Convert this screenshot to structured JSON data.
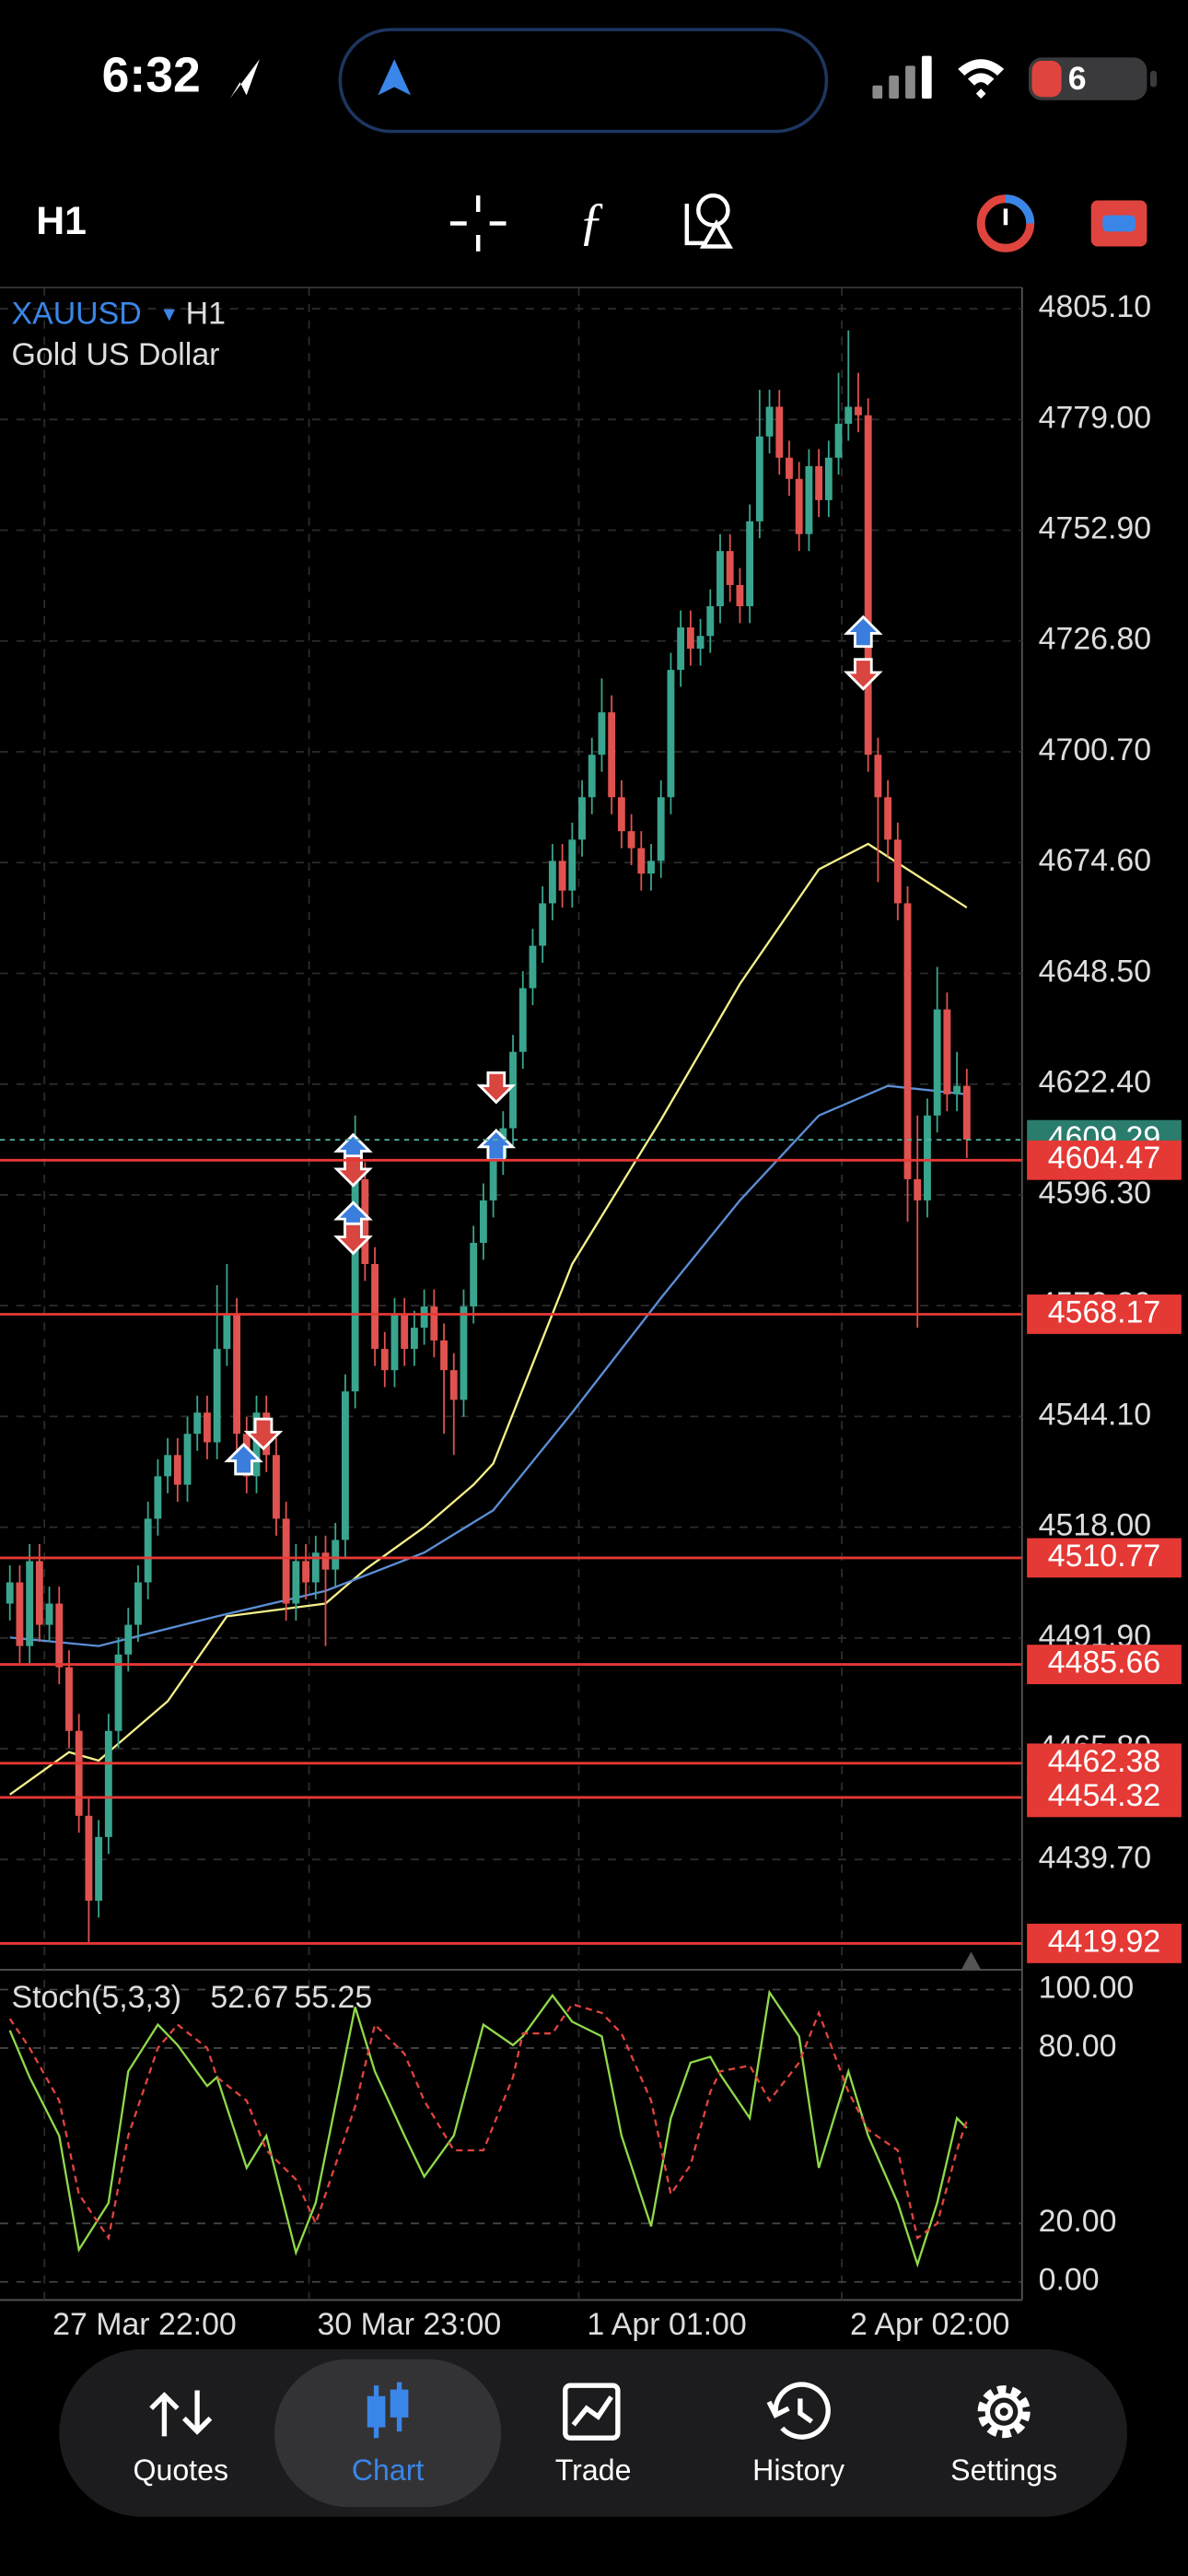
{
  "status_bar": {
    "time": "6:32",
    "battery": "6"
  },
  "toolbar": {
    "timeframe": "H1"
  },
  "chart": {
    "type": "candlestick",
    "symbol": "XAUUSD",
    "symbol_timeframe": "H1",
    "description": "Gold US Dollar",
    "up_color": "#3aa58f",
    "down_color": "#e0524f",
    "ylim": [
      4414.1,
      4810.1
    ],
    "xlim": [
      -1,
      102.6
    ],
    "yticks": [
      {
        "value": 4805.1,
        "label": "4805.10"
      },
      {
        "value": 4779,
        "label": "4779.00"
      },
      {
        "value": 4752.9,
        "label": "4752.90"
      },
      {
        "value": 4726.8,
        "label": "4726.80"
      },
      {
        "value": 4700.7,
        "label": "4700.70"
      },
      {
        "value": 4674.6,
        "label": "4674.60"
      },
      {
        "value": 4648.5,
        "label": "4648.50"
      },
      {
        "value": 4622.4,
        "label": "4622.40"
      },
      {
        "value": 4596.3,
        "label": "4596.30"
      },
      {
        "value": 4570.2,
        "label": "4570.20"
      },
      {
        "value": 4544.1,
        "label": "4544.10"
      },
      {
        "value": 4518,
        "label": "4518.00"
      },
      {
        "value": 4491.9,
        "label": "4491.90"
      },
      {
        "value": 4465.8,
        "label": "4465.80"
      },
      {
        "value": 4439.7,
        "label": "4439.70"
      }
    ],
    "xticks": [
      {
        "value": 3.5,
        "label": "27 Mar 22:00"
      },
      {
        "value": 30.33,
        "label": "30 Mar 23:00"
      },
      {
        "value": 57.67,
        "label": "1 Apr 01:00"
      },
      {
        "value": 84.33,
        "label": "2 Apr 02:00"
      }
    ],
    "current_price": {
      "value": 4609.29,
      "label": "4609.29",
      "color": "#2a7d6c"
    },
    "levels": [
      {
        "value": 4604.47,
        "label": "4604.47"
      },
      {
        "value": 4568.17,
        "label": "4568.17"
      },
      {
        "value": 4510.77,
        "label": "4510.77"
      },
      {
        "value": 4485.66,
        "label": "4485.66"
      },
      {
        "value": 4462.38,
        "label": "4462.38"
      },
      {
        "value": 4454.32,
        "label": "4454.32"
      },
      {
        "value": 4419.92,
        "label": "4419.92"
      }
    ],
    "level_color": "#e53935",
    "candles": [
      [
        4500,
        4509,
        4496,
        4505
      ],
      [
        4505,
        4509,
        4486,
        4490
      ],
      [
        4490,
        4514,
        4486,
        4510
      ],
      [
        4510,
        4514,
        4491,
        4495
      ],
      [
        4495,
        4504,
        4491,
        4500
      ],
      [
        4500,
        4504,
        4481,
        4485
      ],
      [
        4485,
        4489,
        4466,
        4470
      ],
      [
        4470,
        4474,
        4446,
        4450
      ],
      [
        4450,
        4454,
        4420,
        4430
      ],
      [
        4430,
        4449,
        4426,
        4445
      ],
      [
        4445,
        4474,
        4441,
        4470
      ],
      [
        4470,
        4492,
        4466,
        4488
      ],
      [
        4488,
        4499,
        4484,
        4495
      ],
      [
        4495,
        4509,
        4491,
        4505
      ],
      [
        4505,
        4524,
        4501,
        4520
      ],
      [
        4520,
        4534,
        4516,
        4530
      ],
      [
        4530,
        4539,
        4526,
        4535
      ],
      [
        4535,
        4539,
        4524,
        4528
      ],
      [
        4528,
        4544,
        4524,
        4540
      ],
      [
        4540,
        4549,
        4536,
        4545
      ],
      [
        4545,
        4549,
        4534,
        4538
      ],
      [
        4538,
        4575,
        4534,
        4560
      ],
      [
        4560,
        4580,
        4556,
        4568
      ],
      [
        4568,
        4572,
        4536,
        4540
      ],
      [
        4540,
        4544,
        4526,
        4530
      ],
      [
        4530,
        4549,
        4526,
        4545
      ],
      [
        4545,
        4549,
        4531,
        4535
      ],
      [
        4535,
        4539,
        4516,
        4520
      ],
      [
        4520,
        4524,
        4496,
        4500
      ],
      [
        4500,
        4514,
        4496,
        4510
      ],
      [
        4510,
        4514,
        4501,
        4505
      ],
      [
        4505,
        4516,
        4501,
        4512
      ],
      [
        4512,
        4516,
        4490,
        4508
      ],
      [
        4508,
        4519,
        4504,
        4515
      ],
      [
        4515,
        4554,
        4511,
        4550
      ],
      [
        4550,
        4615,
        4546,
        4600
      ],
      [
        4600,
        4604,
        4576,
        4580
      ],
      [
        4580,
        4584,
        4556,
        4560
      ],
      [
        4560,
        4564,
        4551,
        4555
      ],
      [
        4555,
        4572,
        4551,
        4568
      ],
      [
        4568,
        4572,
        4556,
        4560
      ],
      [
        4560,
        4569,
        4556,
        4565
      ],
      [
        4565,
        4574,
        4561,
        4570
      ],
      [
        4570,
        4574,
        4558,
        4562
      ],
      [
        4562,
        4566,
        4540,
        4555
      ],
      [
        4555,
        4559,
        4535,
        4548
      ],
      [
        4548,
        4574,
        4544,
        4570
      ],
      [
        4570,
        4589,
        4566,
        4585
      ],
      [
        4585,
        4599,
        4581,
        4595
      ],
      [
        4595,
        4609,
        4591,
        4605
      ],
      [
        4605,
        4616,
        4601,
        4612
      ],
      [
        4612,
        4634,
        4608,
        4630
      ],
      [
        4630,
        4649,
        4626,
        4645
      ],
      [
        4645,
        4659,
        4641,
        4655
      ],
      [
        4655,
        4669,
        4651,
        4665
      ],
      [
        4665,
        4679,
        4661,
        4675
      ],
      [
        4675,
        4679,
        4664,
        4668
      ],
      [
        4668,
        4684,
        4664,
        4680
      ],
      [
        4680,
        4694,
        4676,
        4690
      ],
      [
        4690,
        4704,
        4686,
        4700
      ],
      [
        4700,
        4718,
        4696,
        4710
      ],
      [
        4710,
        4714,
        4686,
        4690
      ],
      [
        4690,
        4694,
        4678,
        4682
      ],
      [
        4682,
        4686,
        4674,
        4678
      ],
      [
        4678,
        4682,
        4668,
        4672
      ],
      [
        4672,
        4679,
        4668,
        4675
      ],
      [
        4675,
        4694,
        4671,
        4690
      ],
      [
        4690,
        4724,
        4686,
        4720
      ],
      [
        4720,
        4734,
        4716,
        4730
      ],
      [
        4730,
        4734,
        4721,
        4725
      ],
      [
        4725,
        4732,
        4721,
        4728
      ],
      [
        4728,
        4739,
        4724,
        4735
      ],
      [
        4735,
        4752,
        4731,
        4748
      ],
      [
        4748,
        4752,
        4736,
        4740
      ],
      [
        4740,
        4744,
        4731,
        4735
      ],
      [
        4735,
        4759,
        4731,
        4755
      ],
      [
        4755,
        4786,
        4751,
        4775
      ],
      [
        4775,
        4786,
        4771,
        4782
      ],
      [
        4782,
        4786,
        4766,
        4770
      ],
      [
        4770,
        4774,
        4761,
        4765
      ],
      [
        4765,
        4769,
        4748,
        4752
      ],
      [
        4752,
        4772,
        4748,
        4768
      ],
      [
        4768,
        4772,
        4756,
        4760
      ],
      [
        4760,
        4774,
        4756,
        4770
      ],
      [
        4770,
        4790,
        4766,
        4778
      ],
      [
        4778,
        4800,
        4774,
        4782
      ],
      [
        4782,
        4790,
        4776,
        4780
      ],
      [
        4780,
        4784,
        4696,
        4700
      ],
      [
        4700,
        4704,
        4670,
        4690
      ],
      [
        4690,
        4694,
        4676,
        4680
      ],
      [
        4680,
        4684,
        4661,
        4665
      ],
      [
        4665,
        4669,
        4590,
        4600
      ],
      [
        4600,
        4615,
        4565,
        4595
      ],
      [
        4595,
        4619,
        4591,
        4615
      ],
      [
        4615,
        4650,
        4611,
        4640
      ],
      [
        4640,
        4644,
        4616,
        4620
      ],
      [
        4620,
        4630,
        4616,
        4622
      ],
      [
        4622,
        4626,
        4605,
        4609.29
      ]
    ],
    "moving_averages": [
      {
        "color": "#f5f08a",
        "x": [
          0,
          6,
          9,
          16,
          22,
          32,
          36,
          42,
          47,
          49,
          57,
          66,
          74,
          82,
          87,
          97
        ],
        "values": [
          4455,
          4465,
          4463,
          4477,
          4497,
          4500,
          4508,
          4518,
          4528,
          4533,
          4580,
          4614,
          4646,
          4673,
          4679,
          4664
        ]
      },
      {
        "color": "#5b8fd6",
        "x": [
          0,
          9,
          21,
          32,
          42,
          49,
          57,
          66,
          74,
          82,
          89,
          97
        ],
        "values": [
          4492,
          4490,
          4497,
          4503,
          4512,
          4522,
          4545,
          4572,
          4595,
          4615,
          4622,
          4620
        ]
      }
    ],
    "trades": [
      {
        "x": 23.7,
        "price": 4534,
        "color": "#3b7ddd"
      },
      {
        "x": 25.7,
        "price": 4540,
        "color": "#d9453f"
      },
      {
        "x": 34.8,
        "price": 4607,
        "color": "#3b7ddd"
      },
      {
        "x": 34.8,
        "price": 4602,
        "color": "#d9453f"
      },
      {
        "x": 34.8,
        "price": 4591,
        "color": "#3b7ddd"
      },
      {
        "x": 34.8,
        "price": 4586,
        "color": "#d9453f"
      },
      {
        "x": 49.3,
        "price": 4621.6,
        "color": "#d9453f"
      },
      {
        "x": 49.3,
        "price": 4608,
        "color": "#3b7ddd"
      },
      {
        "x": 86.5,
        "price": 4729,
        "color": "#3b7ddd"
      },
      {
        "x": 86.5,
        "price": 4719,
        "color": "#d9453f"
      }
    ]
  },
  "stochastic": {
    "type": "line",
    "title": "Stoch(5,3,3)",
    "ylim": [
      -6.2,
      106.2
    ],
    "yticks": [
      {
        "value": 100,
        "label": "100.00"
      },
      {
        "value": 80,
        "label": "80.00"
      },
      {
        "value": 20,
        "label": "20.00"
      },
      {
        "value": 0,
        "label": "0.00"
      }
    ],
    "x": [
      0,
      2,
      5,
      7,
      10,
      12,
      15,
      17,
      20,
      21,
      24,
      26,
      29,
      31,
      35,
      37,
      40,
      42,
      45,
      48,
      51,
      52,
      55,
      57,
      60,
      62,
      65,
      67,
      69,
      71,
      72,
      75,
      77,
      80,
      82,
      85,
      87,
      90,
      92,
      94,
      96,
      97
    ],
    "series": [
      {
        "color": "#8fd94a",
        "dashed": false,
        "values": [
          86,
          70,
          50,
          11,
          27,
          72,
          88,
          81,
          67,
          70,
          39,
          50,
          10,
          27,
          94,
          72,
          50,
          36,
          50,
          88,
          81,
          84,
          98,
          89,
          84,
          50,
          19,
          56,
          75,
          77,
          71,
          56,
          99,
          84,
          39,
          72,
          50,
          27,
          6,
          27,
          56,
          52.67
        ]
      },
      {
        "color": "#e0443e",
        "dashed": true,
        "values": [
          90,
          80,
          62,
          30,
          15,
          50,
          80,
          88,
          80,
          70,
          62,
          45,
          35,
          20,
          60,
          88,
          78,
          62,
          45,
          45,
          70,
          85,
          85,
          95,
          92,
          85,
          62,
          30,
          40,
          65,
          72,
          74,
          62,
          75,
          92,
          65,
          52,
          45,
          15,
          20,
          45,
          55.25
        ]
      }
    ]
  },
  "nav": {
    "tabs": [
      "Quotes",
      "Chart",
      "Trade",
      "History",
      "Settings"
    ]
  }
}
